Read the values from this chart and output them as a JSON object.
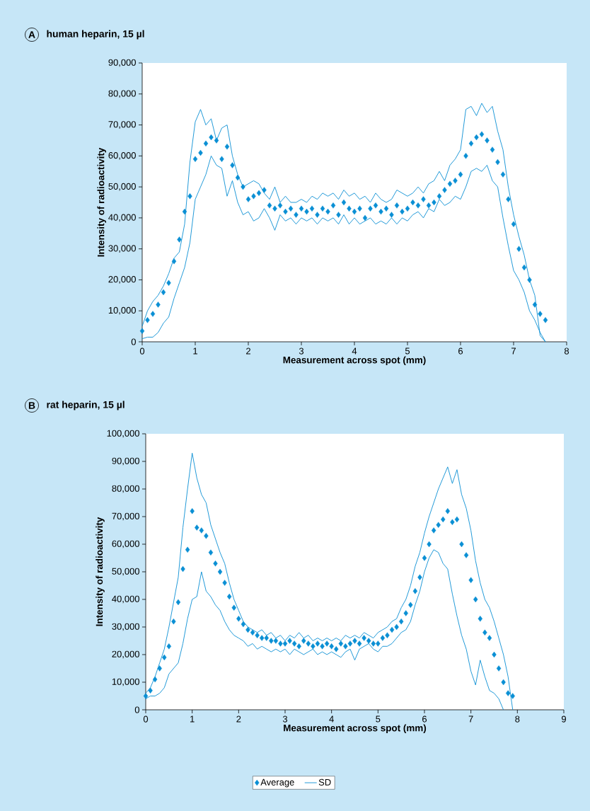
{
  "chart_data": [
    {
      "type": "scatter",
      "title": "human heparin, 15 µl",
      "annotations": [
        "A"
      ],
      "xlabel": "Measurement across spot (mm)",
      "ylabel": "Intensity of radioactivity",
      "xlim": [
        0,
        8
      ],
      "xticks": [
        0,
        1,
        2,
        3,
        4,
        5,
        6,
        7,
        8
      ],
      "ylim": [
        0,
        90000
      ],
      "yticks": [
        {
          "value": 0,
          "label": "0"
        },
        {
          "value": 10000,
          "label": "10,000"
        },
        {
          "value": 20000,
          "label": "20,000"
        },
        {
          "value": 30000,
          "label": "30,000"
        },
        {
          "value": 40000,
          "label": "40,000"
        },
        {
          "value": 50000,
          "label": "50,000"
        },
        {
          "value": 60000,
          "label": "60,000"
        },
        {
          "value": 70000,
          "label": "70,000"
        },
        {
          "value": 80000,
          "label": "80,000"
        },
        {
          "value": 90000,
          "label": "90,000"
        }
      ],
      "x": [
        0,
        0.1,
        0.2,
        0.3,
        0.4,
        0.5,
        0.6,
        0.7,
        0.8,
        0.9,
        1.0,
        1.1,
        1.2,
        1.3,
        1.4,
        1.5,
        1.6,
        1.7,
        1.8,
        1.9,
        2.0,
        2.1,
        2.2,
        2.3,
        2.4,
        2.5,
        2.6,
        2.7,
        2.8,
        2.9,
        3.0,
        3.1,
        3.2,
        3.3,
        3.4,
        3.5,
        3.6,
        3.7,
        3.8,
        3.9,
        4.0,
        4.1,
        4.2,
        4.3,
        4.4,
        4.5,
        4.6,
        4.7,
        4.8,
        4.9,
        5.0,
        5.1,
        5.2,
        5.3,
        5.4,
        5.5,
        5.6,
        5.7,
        5.8,
        5.9,
        6.0,
        6.1,
        6.2,
        6.3,
        6.4,
        6.5,
        6.6,
        6.7,
        6.8,
        6.9,
        7.0,
        7.1,
        7.2,
        7.3,
        7.4,
        7.5,
        7.6
      ],
      "legend": false,
      "series": [
        {
          "marker": "diamond",
          "color": "#0a8fd4",
          "values": [
            3500,
            7000,
            9000,
            12000,
            16000,
            19000,
            26000,
            33000,
            42000,
            47000,
            59000,
            61000,
            64000,
            66000,
            65000,
            59000,
            63000,
            57000,
            53000,
            50000,
            46000,
            47000,
            48000,
            49000,
            44000,
            43000,
            44000,
            42000,
            43000,
            41000,
            43000,
            42000,
            43000,
            41000,
            43000,
            42000,
            44000,
            41000,
            45000,
            43000,
            42000,
            43000,
            40000,
            43000,
            44000,
            42000,
            43000,
            41000,
            44000,
            42000,
            43000,
            45000,
            44000,
            46000,
            44000,
            45000,
            47000,
            49000,
            51000,
            52000,
            54000,
            60000,
            64000,
            66000,
            67000,
            65000,
            62000,
            58000,
            54000,
            46000,
            38000,
            30000,
            24000,
            20000,
            12000,
            9000,
            7000
          ]
        },
        {
          "type": "line",
          "marker": "none",
          "line_style": "solid",
          "color": "#0a8fd4",
          "values": [
            5000,
            10000,
            13000,
            15000,
            18000,
            22000,
            27000,
            29000,
            38000,
            58000,
            71000,
            75000,
            70000,
            72000,
            65000,
            69000,
            70000,
            60000,
            54000,
            50000,
            51000,
            52000,
            51000,
            48000,
            46000,
            50000,
            45000,
            47000,
            45000,
            45000,
            46000,
            45000,
            47000,
            46000,
            48000,
            47000,
            48000,
            46000,
            49000,
            47000,
            48000,
            46000,
            47000,
            45000,
            48000,
            46000,
            45000,
            46000,
            49000,
            48000,
            47000,
            48000,
            50000,
            48000,
            51000,
            52000,
            55000,
            52000,
            57000,
            59000,
            62000,
            75000,
            76000,
            73000,
            77000,
            74000,
            76000,
            68000,
            62000,
            50000,
            41000,
            34000,
            28000,
            20000,
            15000,
            2000,
            0
          ]
        },
        {
          "type": "line",
          "marker": "none",
          "line_style": "solid",
          "color": "#0a8fd4",
          "values": [
            1000,
            1500,
            1500,
            3000,
            6000,
            8000,
            14000,
            19000,
            24000,
            32000,
            46000,
            50000,
            54000,
            60000,
            57000,
            56000,
            47000,
            52000,
            45000,
            41000,
            42000,
            39000,
            40000,
            43000,
            40000,
            36000,
            41000,
            39000,
            40000,
            38000,
            40000,
            39000,
            40000,
            38000,
            40000,
            39000,
            40000,
            38000,
            41000,
            38000,
            40000,
            38000,
            39000,
            40000,
            38000,
            39000,
            38000,
            40000,
            38000,
            40000,
            39000,
            41000,
            42000,
            40000,
            43000,
            42000,
            46000,
            44000,
            45000,
            47000,
            46000,
            50000,
            55000,
            56000,
            55000,
            57000,
            52000,
            50000,
            40000,
            31000,
            23000,
            20000,
            16000,
            10000,
            7000,
            3000,
            0
          ]
        }
      ]
    },
    {
      "type": "scatter",
      "title": "rat heparin, 15 µl",
      "annotations": [
        "B"
      ],
      "xlabel": "Measurement across spot (mm)",
      "ylabel": "Intensity of radioactivity",
      "xlim": [
        0,
        9
      ],
      "xticks": [
        0,
        1,
        2,
        3,
        4,
        5,
        6,
        7,
        8,
        9
      ],
      "ylim": [
        0,
        100000
      ],
      "yticks": [
        {
          "value": 0,
          "label": "0"
        },
        {
          "value": 10000,
          "label": "10,000"
        },
        {
          "value": 20000,
          "label": "20,000"
        },
        {
          "value": 30000,
          "label": "30,000"
        },
        {
          "value": 40000,
          "label": "40,000"
        },
        {
          "value": 50000,
          "label": "50,000"
        },
        {
          "value": 60000,
          "label": "60,000"
        },
        {
          "value": 70000,
          "label": "70,000"
        },
        {
          "value": 80000,
          "label": "80,000"
        },
        {
          "value": 90000,
          "label": "90,000"
        },
        {
          "value": 100000,
          "label": "100,000"
        }
      ],
      "x": [
        0,
        0.1,
        0.2,
        0.3,
        0.4,
        0.5,
        0.6,
        0.7,
        0.8,
        0.9,
        1.0,
        1.1,
        1.2,
        1.3,
        1.4,
        1.5,
        1.6,
        1.7,
        1.8,
        1.9,
        2.0,
        2.1,
        2.2,
        2.3,
        2.4,
        2.5,
        2.6,
        2.7,
        2.8,
        2.9,
        3.0,
        3.1,
        3.2,
        3.3,
        3.4,
        3.5,
        3.6,
        3.7,
        3.8,
        3.9,
        4.0,
        4.1,
        4.2,
        4.3,
        4.4,
        4.5,
        4.6,
        4.7,
        4.8,
        4.9,
        5.0,
        5.1,
        5.2,
        5.3,
        5.4,
        5.5,
        5.6,
        5.7,
        5.8,
        5.9,
        6.0,
        6.1,
        6.2,
        6.3,
        6.4,
        6.5,
        6.6,
        6.7,
        6.8,
        6.9,
        7.0,
        7.1,
        7.2,
        7.3,
        7.4,
        7.5,
        7.6,
        7.7,
        7.8,
        7.9
      ],
      "legend": "bottom",
      "series": [
        {
          "name": "Average",
          "marker": "diamond",
          "color": "#0a8fd4",
          "values": [
            5000,
            7000,
            11000,
            15000,
            19000,
            23000,
            32000,
            39000,
            51000,
            58000,
            72000,
            66000,
            65000,
            63000,
            57000,
            53000,
            50000,
            46000,
            41000,
            37000,
            33000,
            31000,
            29000,
            28000,
            27000,
            26000,
            26000,
            25000,
            25000,
            24000,
            24000,
            25000,
            24000,
            23000,
            25000,
            24000,
            23000,
            24000,
            23000,
            24000,
            23000,
            22000,
            24000,
            23000,
            24000,
            25000,
            24000,
            26000,
            25000,
            24000,
            24000,
            26000,
            27000,
            29000,
            30000,
            32000,
            35000,
            38000,
            43000,
            48000,
            55000,
            60000,
            65000,
            67000,
            69000,
            72000,
            68000,
            69000,
            60000,
            56000,
            47000,
            40000,
            33000,
            28000,
            26000,
            20000,
            15000,
            10000,
            6000,
            5000
          ]
        },
        {
          "type": "line",
          "name": "SD",
          "marker": "none",
          "line_style": "solid",
          "color": "#0a8fd4",
          "values": [
            6000,
            8000,
            12000,
            17000,
            22000,
            30000,
            39000,
            48000,
            66000,
            80000,
            93000,
            84000,
            78000,
            75000,
            67000,
            62000,
            57000,
            53000,
            46000,
            40000,
            36000,
            32000,
            30000,
            29000,
            28000,
            29000,
            27000,
            28000,
            26000,
            27000,
            25000,
            27000,
            26000,
            28000,
            26000,
            27000,
            25000,
            26000,
            25000,
            26000,
            25000,
            26000,
            25000,
            27000,
            26000,
            27000,
            26000,
            28000,
            27000,
            26000,
            28000,
            29000,
            30000,
            32000,
            33000,
            37000,
            40000,
            45000,
            52000,
            57000,
            64000,
            70000,
            75000,
            80000,
            84000,
            88000,
            82000,
            87000,
            78000,
            73000,
            65000,
            54000,
            46000,
            40000,
            37000,
            32000,
            26000,
            20000,
            12000,
            0
          ]
        },
        {
          "type": "line",
          "marker": "none",
          "line_style": "solid",
          "color": "#0a8fd4",
          "values": [
            4000,
            5000,
            5000,
            6000,
            8000,
            13000,
            15000,
            17000,
            24000,
            33000,
            40000,
            41000,
            50000,
            43000,
            41000,
            38000,
            36000,
            32000,
            29000,
            27000,
            26000,
            25000,
            23000,
            24000,
            22000,
            23000,
            22000,
            21000,
            22000,
            21000,
            22000,
            20000,
            22000,
            21000,
            20000,
            21000,
            22000,
            20000,
            21000,
            20000,
            21000,
            20000,
            19000,
            21000,
            22000,
            18000,
            22000,
            23000,
            24000,
            22000,
            21000,
            23000,
            23000,
            24000,
            26000,
            28000,
            29000,
            32000,
            38000,
            43000,
            50000,
            55000,
            58000,
            57000,
            53000,
            51000,
            42000,
            34000,
            27000,
            22000,
            14000,
            9000,
            18000,
            12000,
            7000,
            6000,
            4000,
            0,
            null,
            null
          ]
        }
      ]
    }
  ]
}
